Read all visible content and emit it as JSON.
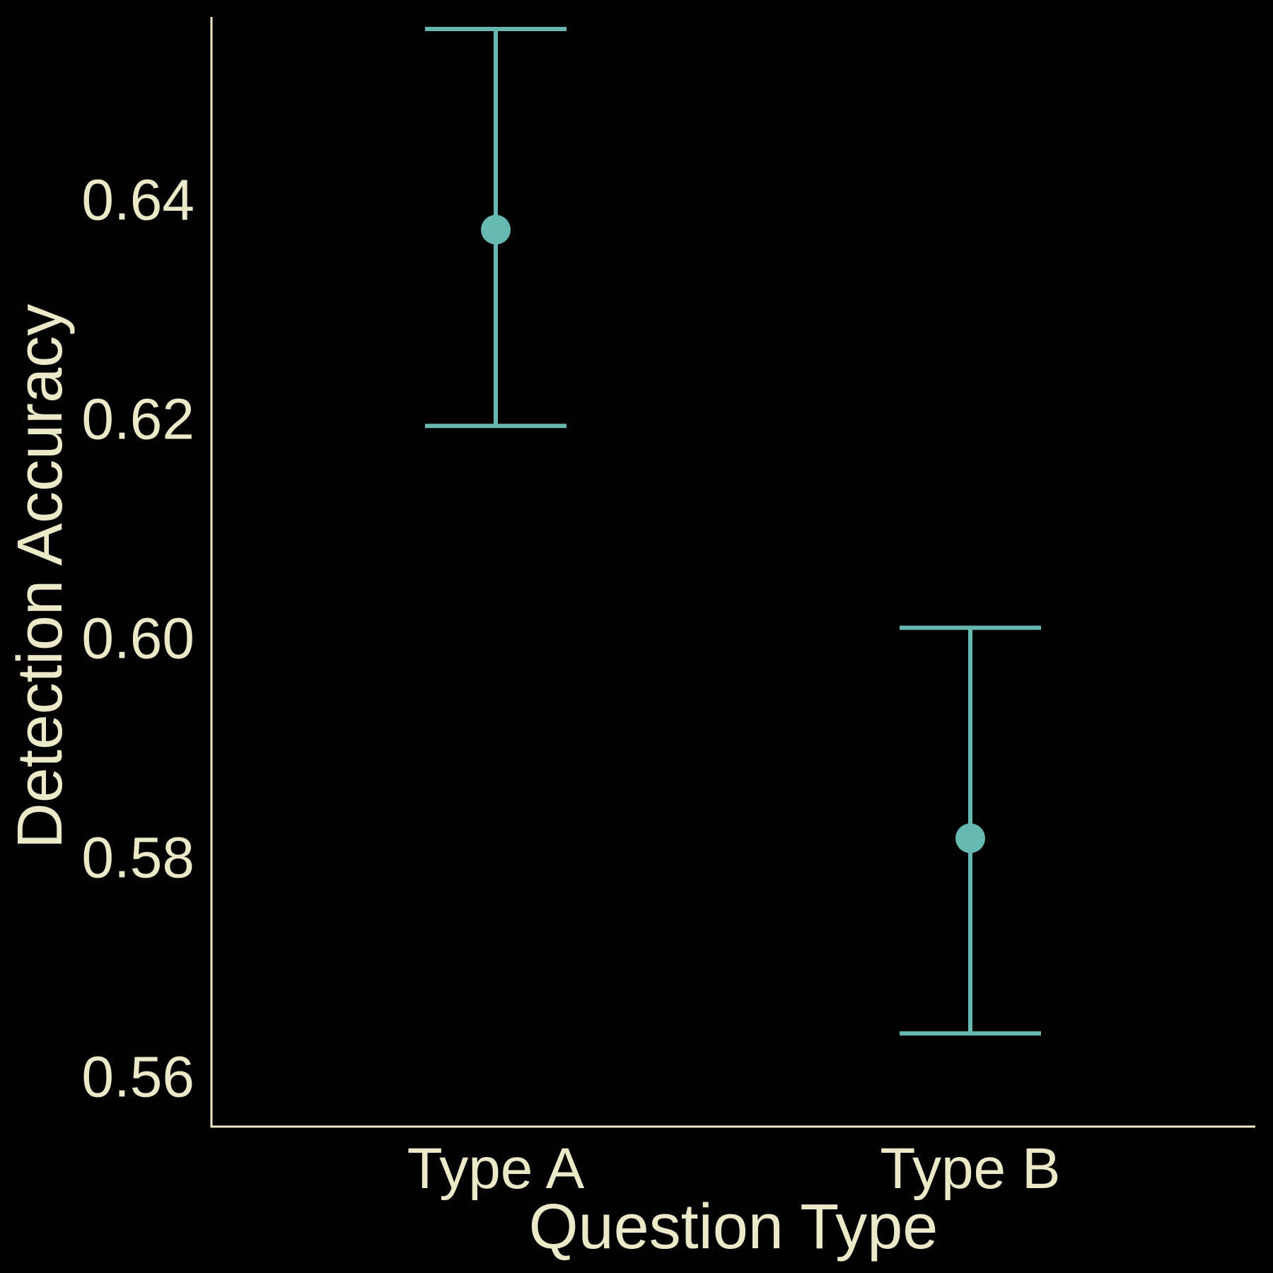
{
  "chart_data": {
    "type": "scatter",
    "xlabel": "Question Type",
    "ylabel": "Detection Accuracy",
    "categories": [
      "Type A",
      "Type B"
    ],
    "ylim": [
      0.5555,
      0.6567
    ],
    "yticks": [
      0.56,
      0.58,
      0.6,
      0.62,
      0.64
    ],
    "ytick_labels": [
      "0.56",
      "0.58",
      "0.60",
      "0.62",
      "0.64"
    ],
    "grid": false,
    "series": [
      {
        "points": [
          {
            "category": "Type A",
            "value": 0.6373,
            "lower": 0.6194,
            "upper": 0.6556
          },
          {
            "category": "Type B",
            "value": 0.5818,
            "lower": 0.564,
            "upper": 0.601
          }
        ]
      }
    ],
    "colors": {
      "background": "#000000",
      "axis": "#ece9c8",
      "text": "#ece9c8",
      "marker": "#66b8b0"
    }
  }
}
